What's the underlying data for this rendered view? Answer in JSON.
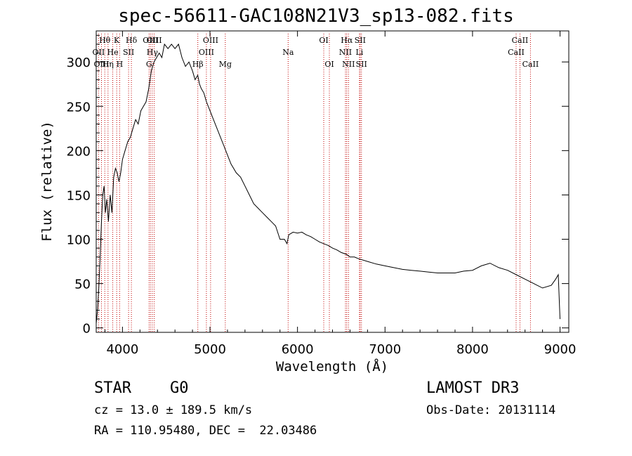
{
  "chart_data": {
    "type": "line",
    "title": "spec-56611-GAC108N21V3_sp13-082.fits",
    "xlabel": "Wavelength (Å)",
    "ylabel": "Flux (relative)",
    "xlim": [
      3700,
      9100
    ],
    "ylim": [
      -5,
      335
    ],
    "xticks": [
      4000,
      5000,
      6000,
      7000,
      8000,
      9000
    ],
    "yticks": [
      0,
      50,
      100,
      150,
      200,
      250,
      300
    ],
    "series": [
      {
        "name": "flux",
        "x": [
          3700,
          3715,
          3730,
          3745,
          3760,
          3775,
          3790,
          3805,
          3820,
          3840,
          3860,
          3880,
          3900,
          3920,
          3940,
          3960,
          3980,
          4000,
          4030,
          4060,
          4090,
          4120,
          4150,
          4180,
          4210,
          4240,
          4270,
          4300,
          4330,
          4360,
          4390,
          4420,
          4450,
          4480,
          4520,
          4560,
          4600,
          4640,
          4680,
          4720,
          4760,
          4800,
          4830,
          4860,
          4880,
          4900,
          4930,
          4960,
          5000,
          5040,
          5080,
          5120,
          5160,
          5200,
          5240,
          5300,
          5350,
          5400,
          5450,
          5500,
          5550,
          5600,
          5650,
          5700,
          5750,
          5800,
          5850,
          5880,
          5900,
          5950,
          6000,
          6050,
          6100,
          6150,
          6200,
          6250,
          6300,
          6350,
          6400,
          6450,
          6500,
          6560,
          6600,
          6650,
          6700,
          6800,
          6900,
          7000,
          7100,
          7200,
          7300,
          7400,
          7500,
          7600,
          7700,
          7800,
          7900,
          8000,
          8100,
          8200,
          8300,
          8400,
          8500,
          8600,
          8700,
          8800,
          8900,
          8950,
          8980,
          9000
        ],
        "y": [
          5,
          20,
          45,
          80,
          120,
          150,
          160,
          130,
          145,
          120,
          150,
          130,
          170,
          180,
          175,
          165,
          175,
          190,
          200,
          210,
          215,
          225,
          235,
          230,
          245,
          250,
          255,
          270,
          290,
          300,
          305,
          310,
          305,
          320,
          315,
          320,
          315,
          320,
          305,
          295,
          300,
          290,
          280,
          285,
          275,
          270,
          265,
          255,
          245,
          235,
          225,
          215,
          205,
          195,
          185,
          175,
          170,
          160,
          150,
          140,
          135,
          130,
          125,
          120,
          115,
          100,
          100,
          95,
          105,
          108,
          107,
          108,
          105,
          103,
          100,
          97,
          95,
          93,
          90,
          88,
          85,
          83,
          80,
          80,
          78,
          75,
          72,
          70,
          68,
          66,
          65,
          64,
          63,
          62,
          62,
          62,
          64,
          65,
          70,
          73,
          68,
          65,
          60,
          55,
          50,
          45,
          48,
          55,
          60,
          10
        ]
      }
    ],
    "lines": [
      {
        "label": "Hθ",
        "x": 3798,
        "row": 0
      },
      {
        "label": "OII",
        "x": 3727,
        "row": 1
      },
      {
        "label": "OIII",
        "x": 3760,
        "row": 2
      },
      {
        "label": "Hη",
        "x": 3835,
        "row": 2
      },
      {
        "label": "He",
        "x": 3889,
        "row": 1
      },
      {
        "label": "K",
        "x": 3934,
        "row": 0
      },
      {
        "label": "H",
        "x": 3968,
        "row": 2
      },
      {
        "label": "SII",
        "x": 4070,
        "row": 1
      },
      {
        "label": "Hδ",
        "x": 4102,
        "row": 0
      },
      {
        "label": "OIII",
        "x": 4320,
        "row": 0
      },
      {
        "label": "Hγ",
        "x": 4341,
        "row": 1
      },
      {
        "label": "G",
        "x": 4304,
        "row": 2
      },
      {
        "label": "OIII",
        "x": 4363,
        "row": 0
      },
      {
        "label": "Hβ",
        "x": 4861,
        "row": 2
      },
      {
        "label": "OIII",
        "x": 4959,
        "row": 1
      },
      {
        "label": "OIII",
        "x": 5007,
        "row": 0
      },
      {
        "label": "Mg",
        "x": 5175,
        "row": 2
      },
      {
        "label": "Na",
        "x": 5893,
        "row": 1
      },
      {
        "label": "OI",
        "x": 6300,
        "row": 0
      },
      {
        "label": "OI",
        "x": 6364,
        "row": 2
      },
      {
        "label": "NII",
        "x": 6548,
        "row": 1
      },
      {
        "label": "Hα",
        "x": 6563,
        "row": 0
      },
      {
        "label": "NII",
        "x": 6583,
        "row": 2
      },
      {
        "label": "SII",
        "x": 6716,
        "row": 0
      },
      {
        "label": "Li",
        "x": 6708,
        "row": 1
      },
      {
        "label": "SII",
        "x": 6731,
        "row": 2
      },
      {
        "label": "CaII",
        "x": 8498,
        "row": 1
      },
      {
        "label": "CaII",
        "x": 8542,
        "row": 0
      },
      {
        "label": "CaII",
        "x": 8662,
        "row": 2
      }
    ],
    "line_color": "#c00000",
    "spectrum_color": "#000000"
  },
  "info": {
    "class": "STAR",
    "subclass": "G0",
    "survey": "LAMOST DR3",
    "cz": "cz = 13.0 ± 189.5 km/s",
    "obs_date": "Obs-Date: 20131114",
    "coords": "RA = 110.95480, DEC =  22.03486"
  }
}
